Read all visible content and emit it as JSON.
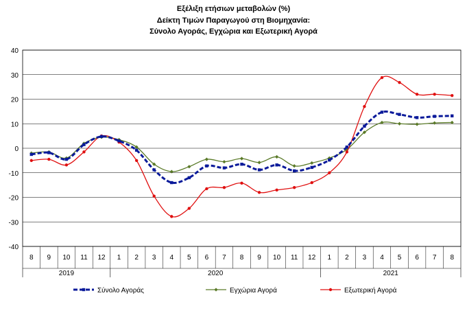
{
  "chart_data": {
    "type": "line",
    "title": [
      "Εξέλιξη ετήσιων μεταβολών (%)",
      "Δείκτη Τιμών Παραγωγού στη Βιομηχανία:",
      "Σύνολο Αγοράς, Εγχώρια και Εξωτερική Αγορά"
    ],
    "categories": [
      "8",
      "9",
      "10",
      "11",
      "12",
      "1",
      "2",
      "3",
      "4",
      "5",
      "6",
      "7",
      "8",
      "9",
      "10",
      "11",
      "12",
      "1",
      "2",
      "3",
      "4",
      "5",
      "6",
      "7",
      "8"
    ],
    "year_groups": [
      {
        "label": "2019",
        "start": 0,
        "end": 4
      },
      {
        "label": "2020",
        "start": 5,
        "end": 16
      },
      {
        "label": "2021",
        "start": 17,
        "end": 24
      }
    ],
    "ylim": [
      -40,
      40
    ],
    "yticks": [
      -40,
      -30,
      -20,
      -10,
      0,
      10,
      20,
      30,
      40
    ],
    "grid": true,
    "legend_position": "bottom",
    "series": [
      {
        "name": "Σύνολο Αγοράς",
        "color": "#0a1a9a",
        "style": "dashed",
        "values": [
          -2.5,
          -1.8,
          -4.5,
          1.5,
          4.8,
          3.0,
          -0.8,
          -8.8,
          -14.0,
          -12.0,
          -7.2,
          -8.0,
          -6.5,
          -8.8,
          -6.8,
          -9.2,
          -7.8,
          -4.8,
          0.5,
          9.0,
          14.7,
          13.8,
          12.5,
          13.0,
          13.2
        ]
      },
      {
        "name": "Εγχώρια Αγορά",
        "color": "#5a7a28",
        "style": "solid-diamond",
        "values": [
          -2.0,
          -1.5,
          -4.0,
          2.0,
          4.5,
          3.5,
          0.5,
          -6.5,
          -9.5,
          -7.5,
          -4.5,
          -5.5,
          -4.2,
          -5.8,
          -3.5,
          -7.2,
          -6.0,
          -4.0,
          -0.5,
          6.5,
          10.5,
          10.0,
          9.8,
          10.3,
          10.5
        ]
      },
      {
        "name": "Εξωτερική Αγορά",
        "color": "#e01010",
        "style": "solid-dot",
        "values": [
          -5.0,
          -4.5,
          -6.8,
          -1.5,
          5.0,
          2.5,
          -5.0,
          -19.5,
          -27.8,
          -24.5,
          -16.5,
          -16.0,
          -14.2,
          -18.0,
          -17.0,
          -16.0,
          -14.0,
          -10.0,
          -1.5,
          17.0,
          28.8,
          26.8,
          22.0,
          22.0,
          21.5
        ]
      }
    ]
  }
}
